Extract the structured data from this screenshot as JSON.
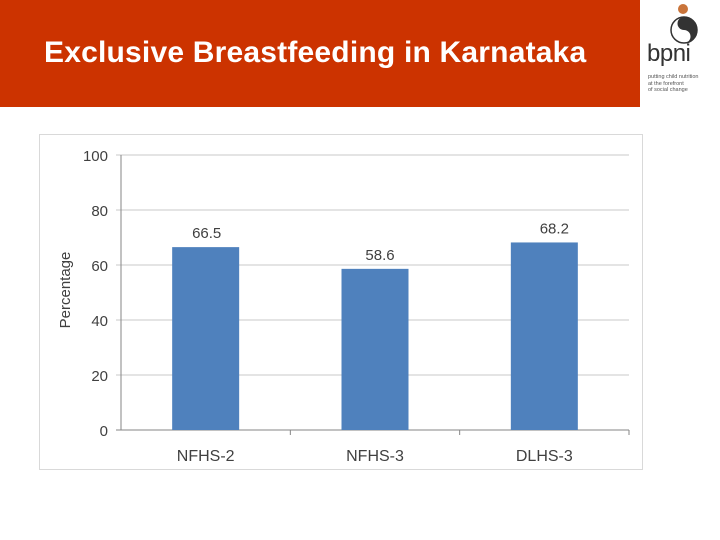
{
  "slide": {
    "title": "Exclusive Breastfeeding in Karnataka",
    "header_color": "#cc3300"
  },
  "logo": {
    "name": "bpni",
    "tagline": [
      "putting child nutrition",
      "at the forefront",
      "of social change"
    ]
  },
  "chart_data": {
    "type": "bar",
    "title": "",
    "categories": [
      "NFHS-2",
      "NFHS-3",
      "DLHS-3"
    ],
    "values": [
      66.5,
      58.6,
      68.2
    ],
    "value_labels": [
      "66.5",
      "58.6",
      "68.2"
    ],
    "xlabel": "",
    "ylabel": "Percentage",
    "ylim": [
      0,
      100
    ],
    "yticks": [
      0,
      20,
      40,
      60,
      80,
      100
    ],
    "grid": true,
    "bar_color": "#4f81bd"
  }
}
